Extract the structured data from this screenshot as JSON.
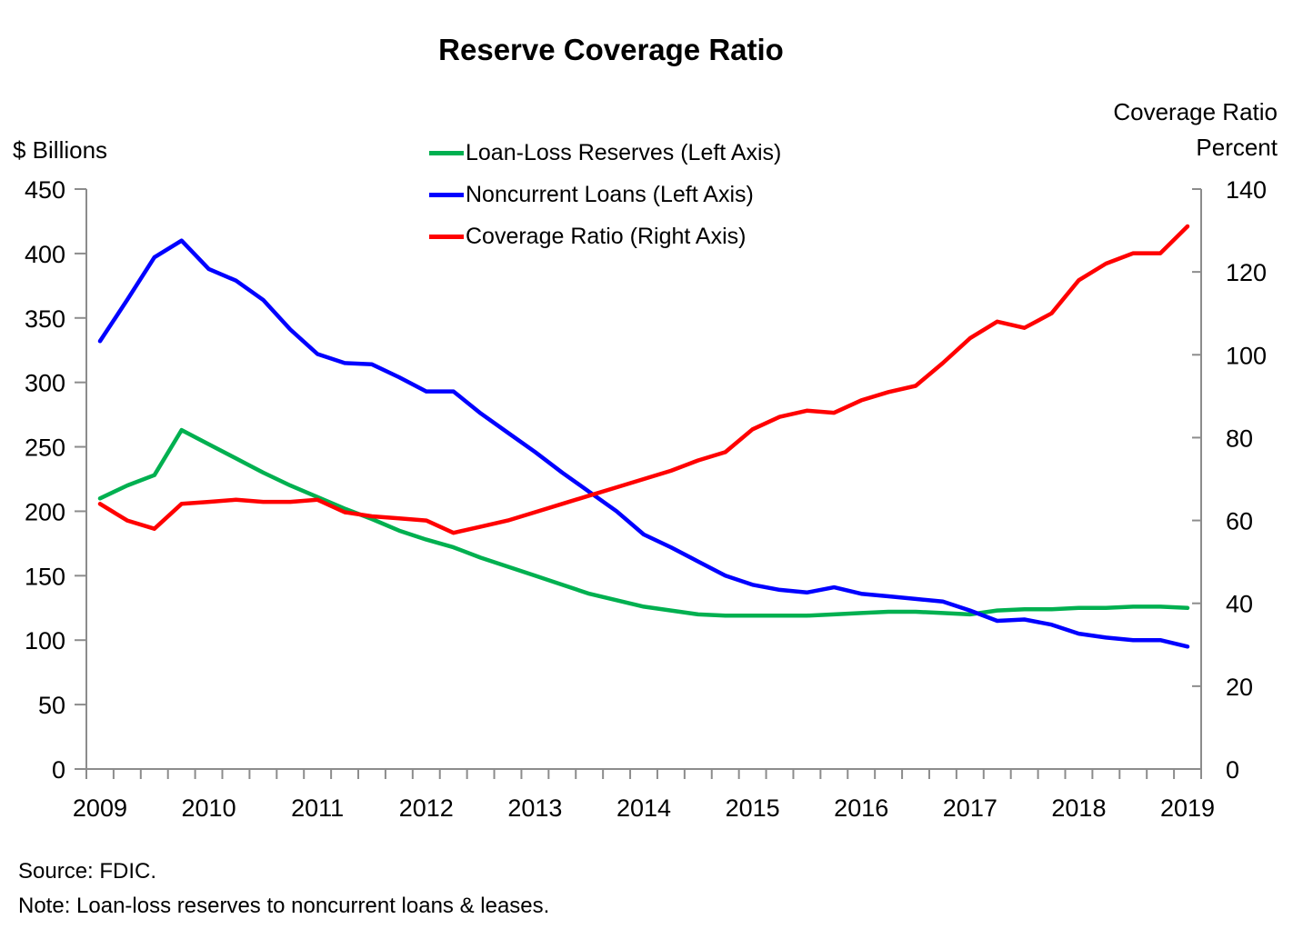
{
  "title": "Reserve Coverage Ratio",
  "left_axis": {
    "title": "$ Billions",
    "ticks": [
      450,
      400,
      350,
      300,
      250,
      200,
      150,
      100,
      50,
      0
    ],
    "range": [
      0,
      450
    ]
  },
  "right_axis": {
    "title_line1": "Coverage Ratio",
    "title_line2": "Percent",
    "ticks": [
      140,
      120,
      100,
      80,
      60,
      40,
      20,
      0
    ],
    "range": [
      0,
      140
    ]
  },
  "x_axis": {
    "year_labels": [
      "2009",
      "2010",
      "2011",
      "2012",
      "2013",
      "2014",
      "2015",
      "2016",
      "2017",
      "2018",
      "2019"
    ]
  },
  "footer": {
    "source": "Source: FDIC.",
    "note": "Note: Loan-loss reserves to noncurrent loans & leases."
  },
  "colors": {
    "reserves_green": "#00B050",
    "noncurrent_blue": "#0000FF",
    "coverage_red": "#FF0000",
    "axis_gray": "#8C8C8C",
    "text_black": "#000000"
  },
  "chart_data": {
    "type": "line",
    "title": "Reserve Coverage Ratio",
    "xlabel": "",
    "left_ylabel": "$ Billions",
    "right_ylabel": "Coverage Ratio Percent",
    "left_ylim": [
      0,
      450
    ],
    "right_ylim": [
      0,
      140
    ],
    "grid": false,
    "legend_position": "top-center",
    "x": [
      "2009 Q1",
      "2009 Q2",
      "2009 Q3",
      "2009 Q4",
      "2010 Q1",
      "2010 Q2",
      "2010 Q3",
      "2010 Q4",
      "2011 Q1",
      "2011 Q2",
      "2011 Q3",
      "2011 Q4",
      "2012 Q1",
      "2012 Q2",
      "2012 Q3",
      "2012 Q4",
      "2013 Q1",
      "2013 Q2",
      "2013 Q3",
      "2013 Q4",
      "2014 Q1",
      "2014 Q2",
      "2014 Q3",
      "2014 Q4",
      "2015 Q1",
      "2015 Q2",
      "2015 Q3",
      "2015 Q4",
      "2016 Q1",
      "2016 Q2",
      "2016 Q3",
      "2016 Q4",
      "2017 Q1",
      "2017 Q2",
      "2017 Q3",
      "2017 Q4",
      "2018 Q1",
      "2018 Q2",
      "2018 Q3",
      "2018 Q4",
      "2019 Q1"
    ],
    "series": [
      {
        "name": "Loan-Loss Reserves (Left Axis)",
        "axis": "left",
        "color": "#00B050",
        "unit": "$ Billions",
        "values": [
          210,
          220,
          228,
          263,
          252,
          241,
          230,
          220,
          211,
          202,
          194,
          185,
          178,
          172,
          164,
          157,
          150,
          143,
          136,
          131,
          126,
          123,
          120,
          119,
          119,
          119,
          119,
          120,
          121,
          122,
          122,
          121,
          120,
          123,
          124,
          124,
          125,
          125,
          126,
          126,
          125
        ]
      },
      {
        "name": "Noncurrent Loans (Left Axis)",
        "axis": "left",
        "color": "#0000FF",
        "unit": "$ Billions",
        "values": [
          332,
          364,
          397,
          410,
          388,
          379,
          364,
          341,
          322,
          315,
          314,
          304,
          293,
          293,
          276,
          261,
          246,
          230,
          215,
          200,
          182,
          172,
          161,
          150,
          143,
          139,
          137,
          141,
          136,
          134,
          132,
          130,
          123,
          115,
          116,
          112,
          105,
          102,
          100,
          100,
          95
        ]
      },
      {
        "name": "Coverage Ratio (Right Axis)",
        "axis": "right",
        "color": "#FF0000",
        "unit": "Percent",
        "values": [
          64,
          60,
          58,
          64,
          64.5,
          65,
          64.5,
          64.5,
          65,
          62,
          61,
          60.5,
          60,
          57,
          58.5,
          60,
          62,
          64,
          66,
          68,
          70,
          72,
          74.5,
          76.5,
          82,
          85,
          86.5,
          86,
          89,
          91,
          92.5,
          98,
          104,
          108,
          106.5,
          110,
          118,
          122,
          124.5,
          124.5,
          131
        ]
      }
    ]
  }
}
